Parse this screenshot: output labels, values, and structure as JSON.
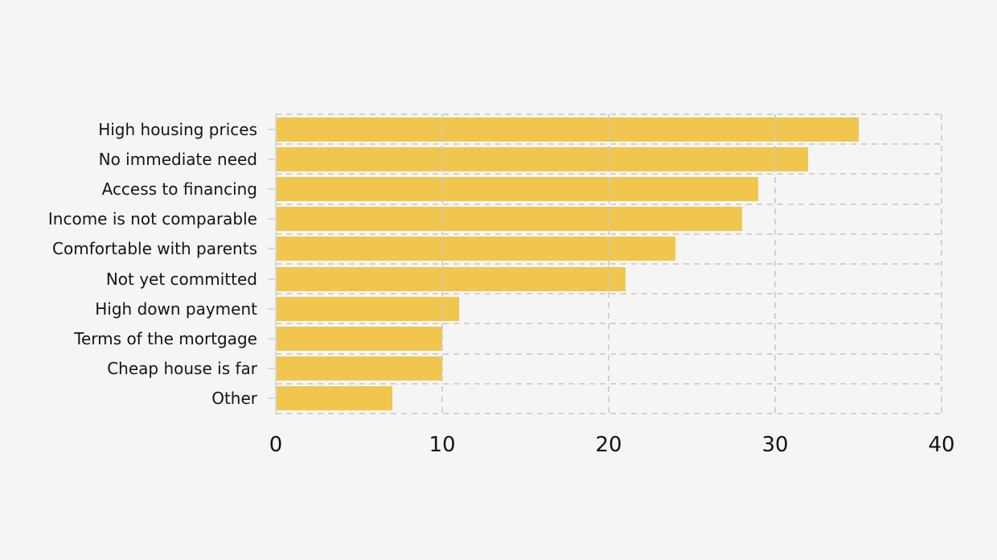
{
  "chart_data": {
    "type": "bar",
    "orientation": "horizontal",
    "title": "",
    "xlabel": "",
    "ylabel": "",
    "categories": [
      "High housing prices",
      "No immediate need",
      "Access to financing",
      "Income is not comparable",
      "Comfortable with parents",
      "Not yet committed",
      "High down payment",
      "Terms of the mortgage",
      "Cheap house is far",
      "Other"
    ],
    "values": [
      35,
      32,
      29,
      28,
      24,
      21,
      11,
      10,
      10,
      7
    ],
    "xlim": [
      0,
      40
    ],
    "xticks": [
      0,
      10,
      20,
      30,
      40
    ],
    "grid": "dashed",
    "gridlines_over_bars": true,
    "legend": "none",
    "colors": {
      "bar": "#F0C64F",
      "background": "#F5F5F3",
      "grid": "#CBCBCB",
      "spine": "#D9D9D9",
      "text": "#141414"
    }
  }
}
